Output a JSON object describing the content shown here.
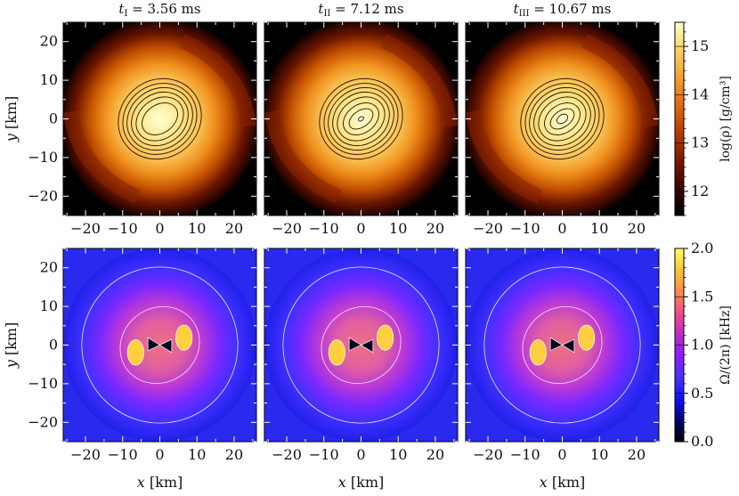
{
  "chart_data": {
    "type": "heatmap",
    "time_labels": [
      {
        "var": "t",
        "sub": "I",
        "text": " = 3.56 ms"
      },
      {
        "var": "t",
        "sub": "II",
        "text": " = 7.12 ms"
      },
      {
        "var": "t",
        "sub": "III",
        "text": " = 10.67 ms"
      }
    ],
    "xlabel": {
      "var": "x",
      "unit": " [km]"
    },
    "ylabel": {
      "var": "y",
      "unit": " [km]"
    },
    "xlim": [
      -26,
      26
    ],
    "ylim": [
      -25,
      25
    ],
    "x_ticks": [
      -20,
      -10,
      0,
      10,
      20
    ],
    "y_ticks": [
      -20,
      -10,
      0,
      10,
      20
    ],
    "x_tick_labels": [
      "−20",
      "−10",
      "0",
      "10",
      "20"
    ],
    "y_tick_labels": [
      "−20",
      "−10",
      "0",
      "10",
      "20"
    ],
    "rows": [
      {
        "quantity": "density",
        "colorbar_label": "log(ρ) [g/cm³]",
        "colorbar_range": [
          11.5,
          15.5
        ],
        "colorbar_ticks": [
          12,
          13,
          14,
          15
        ],
        "colorbar_tick_labels": [
          "12",
          "13",
          "14",
          "15"
        ],
        "colormap": [
          "#000000",
          "#3a0500",
          "#7a1a00",
          "#b53d00",
          "#e06a10",
          "#f3a030",
          "#fbd263",
          "#ffffc8"
        ]
      },
      {
        "quantity": "angular_velocity",
        "colorbar_label": "Ω/(2π) [kHz]",
        "colorbar_range": [
          0.0,
          2.0
        ],
        "colorbar_ticks": [
          0.0,
          0.5,
          1.0,
          1.5,
          2.0
        ],
        "colorbar_tick_labels": [
          "0.0",
          "0.5",
          "1.0",
          "1.5",
          "2.0"
        ],
        "colormap": [
          "#000000",
          "#000070",
          "#1010ff",
          "#4a30ff",
          "#8a1dff",
          "#c428c8",
          "#f04c88",
          "#ff8a4a",
          "#ffc532",
          "#ffff6c"
        ]
      }
    ]
  }
}
